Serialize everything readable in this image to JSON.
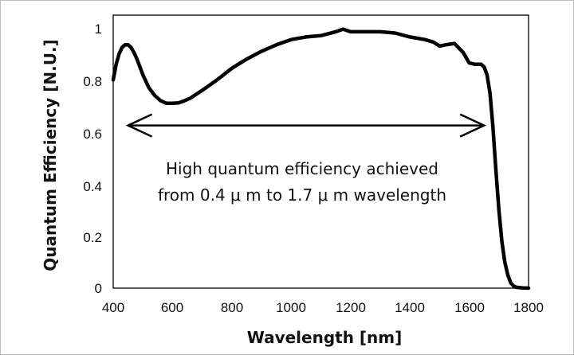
{
  "chart_data": {
    "type": "line",
    "title": "",
    "xlabel": "Wavelength [nm]",
    "ylabel": "Quantum Efficiency [N.U.]",
    "xlim": [
      400,
      1800
    ],
    "ylim": [
      0,
      1
    ],
    "xticks": [
      "400",
      "600",
      "800",
      "1000",
      "1200",
      "1400",
      "1600",
      "1800"
    ],
    "yticks": [
      "0",
      "0.2",
      "0.4",
      "0.6",
      "0.8",
      "1"
    ],
    "grid": false,
    "legend": "none",
    "series": [
      {
        "color": "#000000",
        "x": [
          400,
          410,
          420,
          430,
          440,
          450,
          460,
          470,
          480,
          490,
          500,
          520,
          540,
          560,
          580,
          600,
          620,
          640,
          660,
          680,
          700,
          750,
          800,
          850,
          900,
          950,
          1000,
          1050,
          1100,
          1150,
          1175,
          1200,
          1250,
          1300,
          1350,
          1400,
          1450,
          1480,
          1500,
          1520,
          1550,
          1580,
          1600,
          1620,
          1640,
          1650,
          1660,
          1670,
          1680,
          1690,
          1700,
          1710,
          1720,
          1730,
          1740,
          1750,
          1760,
          1780,
          1800
        ],
        "y": [
          0.8,
          0.86,
          0.9,
          0.925,
          0.935,
          0.935,
          0.925,
          0.905,
          0.88,
          0.85,
          0.82,
          0.77,
          0.74,
          0.72,
          0.71,
          0.71,
          0.712,
          0.72,
          0.73,
          0.745,
          0.76,
          0.8,
          0.845,
          0.88,
          0.91,
          0.935,
          0.955,
          0.965,
          0.97,
          0.985,
          0.995,
          0.985,
          0.985,
          0.985,
          0.98,
          0.965,
          0.955,
          0.945,
          0.93,
          0.935,
          0.94,
          0.905,
          0.865,
          0.86,
          0.86,
          0.85,
          0.82,
          0.75,
          0.62,
          0.45,
          0.3,
          0.18,
          0.1,
          0.05,
          0.02,
          0.008,
          0.003,
          0.001,
          0.0
        ]
      }
    ],
    "annotations": [
      {
        "type": "double-arrow",
        "x_start": 450,
        "x_end": 1650,
        "y": 0.625
      },
      {
        "type": "text",
        "lines": [
          "High quantum efficiency achieved",
          "from 0.4 μ m to 1.7 μ m wavelength"
        ]
      }
    ]
  }
}
